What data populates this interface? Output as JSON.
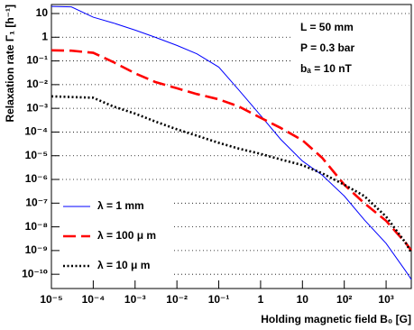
{
  "chart_data": {
    "type": "line",
    "xlabel": "Holding magnetic field B₀ [G]",
    "ylabel": "Relaxation rate Γ₁ [h⁻¹]",
    "annotations": [
      "L = 50 mm",
      "P = 0.3 bar",
      "bₐ = 10 nT"
    ],
    "xscale": "log",
    "yscale": "log",
    "grid": "y",
    "legend": "lower left",
    "xlim": [
      1e-05,
      4000
    ],
    "ylim": [
      2.5e-11,
      24
    ],
    "xticks": [
      {
        "value": 1e-05,
        "label": "10⁻⁵"
      },
      {
        "value": 0.0001,
        "label": "10⁻⁴"
      },
      {
        "value": 0.001,
        "label": "10⁻³"
      },
      {
        "value": 0.01,
        "label": "10⁻²"
      },
      {
        "value": 0.1,
        "label": "10⁻¹"
      },
      1,
      10,
      {
        "value": 100,
        "label": "10²"
      },
      {
        "value": 1000,
        "label": "10³"
      }
    ],
    "yticks": [
      10,
      1,
      {
        "value": 0.1,
        "label": "10⁻¹"
      },
      {
        "value": 0.01,
        "label": "10⁻²"
      },
      {
        "value": 0.001,
        "label": "10⁻³"
      },
      {
        "value": 0.0001,
        "label": "10⁻⁴"
      },
      {
        "value": 1e-05,
        "label": "10⁻⁵"
      },
      {
        "value": 1e-06,
        "label": "10⁻⁶"
      },
      {
        "value": 1e-07,
        "label": "10⁻⁷"
      },
      {
        "value": 1e-08,
        "label": "10⁻⁸"
      },
      {
        "value": 1e-09,
        "label": "10⁻⁹"
      },
      {
        "value": 1e-10,
        "label": "10⁻¹⁰"
      }
    ],
    "x": [
      1e-05,
      3e-05,
      0.0001,
      0.0003,
      0.001,
      0.003,
      0.01,
      0.03,
      0.1,
      0.3,
      1,
      3,
      10,
      30,
      100,
      300,
      1000,
      3000,
      4000
    ],
    "series": [
      {
        "name": "λ = 1 mm",
        "color": "#0000ff",
        "line_style": "solid",
        "values": [
          20,
          19,
          7,
          4,
          2,
          1,
          0.45,
          0.2,
          0.055,
          0.006,
          0.0005,
          5e-05,
          6e-06,
          1.5e-06,
          2e-07,
          2e-08,
          2e-09,
          1.3e-10,
          6e-11
        ]
      },
      {
        "name": "λ = 100 μ m",
        "color": "#ff0000",
        "line_style": "dashed",
        "values": [
          0.28,
          0.27,
          0.22,
          0.09,
          0.03,
          0.013,
          0.007,
          0.004,
          0.0024,
          0.0012,
          0.0004,
          0.00015,
          4.5e-05,
          8e-06,
          6e-07,
          1e-07,
          1.8e-08,
          2e-09,
          1e-09
        ]
      },
      {
        "name": "λ = 10 μ m",
        "color": "#000000",
        "line_style": "dotted",
        "values": [
          0.0032,
          0.003,
          0.0028,
          0.0012,
          0.0006,
          0.00028,
          0.00013,
          7e-05,
          3.5e-05,
          2e-05,
          1.2e-05,
          7e-06,
          4e-06,
          1.8e-06,
          6e-07,
          2e-07,
          2.7e-08,
          2e-09,
          8e-10
        ]
      }
    ]
  }
}
